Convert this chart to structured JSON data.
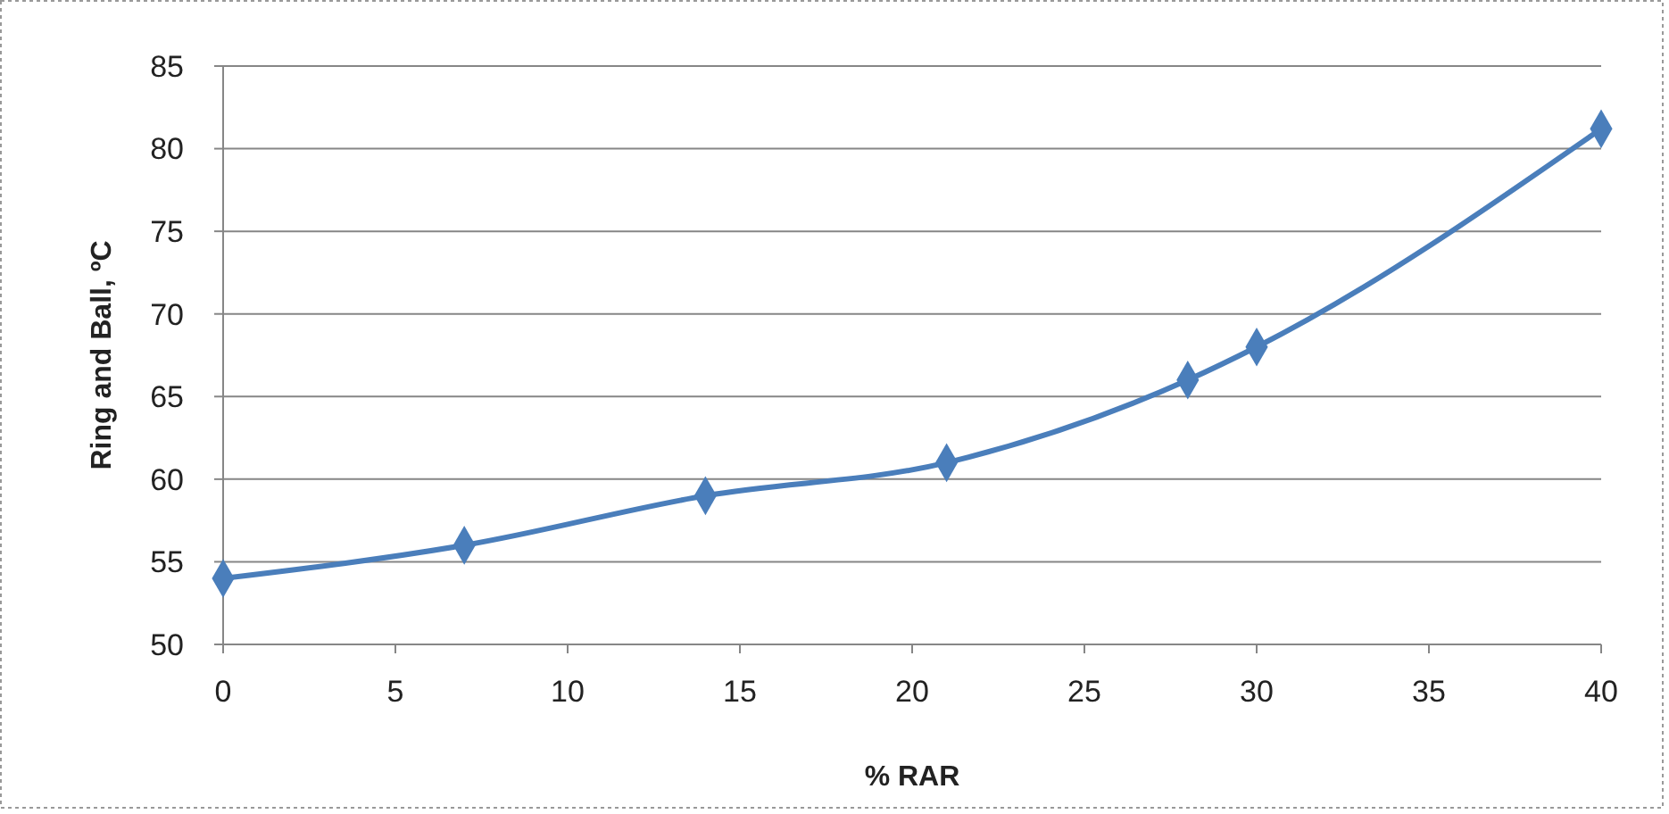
{
  "chart_data": {
    "type": "line",
    "xlabel": "% RAR",
    "ylabel": "Ring and Ball, ºC",
    "x": [
      0,
      7,
      14,
      21,
      28,
      30,
      40
    ],
    "series": [
      {
        "color": "#4a7ebb",
        "values": [
          54,
          56,
          59,
          61,
          66,
          68,
          81.2
        ]
      }
    ],
    "xlim": [
      0,
      40
    ],
    "xticks": [
      0,
      5,
      10,
      15,
      20,
      25,
      30,
      35,
      40
    ],
    "ylim": [
      50,
      85
    ],
    "yticks": [
      50,
      55,
      60,
      65,
      70,
      75,
      80,
      85
    ],
    "grid": "y",
    "marker": "diamond",
    "line_style": "solid"
  }
}
